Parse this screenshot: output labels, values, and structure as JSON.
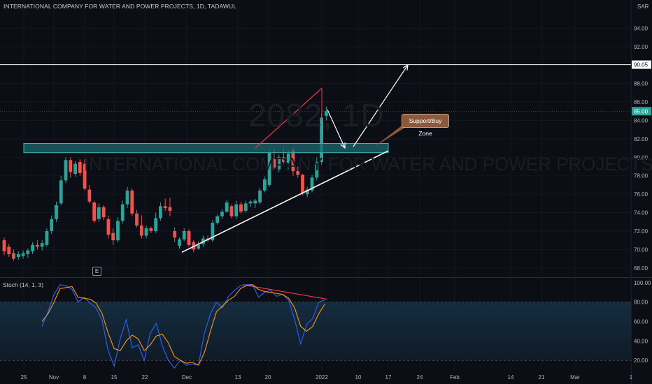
{
  "header": {
    "title": "INTERNATIONAL COMPANY FOR WATER AND POWER PROJECTS, 1D, TADAWUL",
    "currency": "SAR"
  },
  "watermark": {
    "symbol": "2082, 1D",
    "name": "INTERNATIONAL COMPANY FOR WATER AND POWER PROJECTS"
  },
  "annotation": {
    "text": "Support/Buy Zone"
  },
  "earnings_badge": "E",
  "indicator": {
    "label": "Stoch (14, 1, 3)"
  },
  "colors": {
    "background": "#0c0e15",
    "up": "#26a69a",
    "down": "#ef5350",
    "zone_fill": "#1a6a6e",
    "zone_border": "#3fb5b8",
    "k_line": "#2962ff",
    "d_line": "#ff9800",
    "divergence": "#f23645",
    "trendline": "#ffffff",
    "last_price_bg": "#26a69a"
  },
  "chart_data": [
    {
      "type": "candlestick",
      "title": "INTERNATIONAL COMPANY FOR WATER AND POWER PROJECTS, 1D, TADAWUL",
      "y_unit": "SAR",
      "ylim": [
        67,
        96
      ],
      "y_ticks": [
        68,
        70,
        72,
        74,
        76,
        78,
        80,
        82,
        84,
        86,
        88,
        92,
        94
      ],
      "y_tick_labels": [
        "68.00",
        "70.00",
        "72.00",
        "74.00",
        "76.00",
        "78.00",
        "80.00",
        "82.00",
        "84.00",
        "86.00",
        "88.00",
        "92.00",
        "94.00"
      ],
      "x_tick_labels": [
        "25",
        "Nov",
        "8",
        "15",
        "22",
        "Dec",
        "13",
        "20",
        "2022",
        "10",
        "17",
        "24",
        "Feb",
        "14",
        "21",
        "Mar",
        "1"
      ],
      "candles": [
        {
          "o": 71.0,
          "h": 71.3,
          "l": 69.4,
          "c": 69.8
        },
        {
          "o": 70.3,
          "h": 70.6,
          "l": 69.2,
          "c": 69.5
        },
        {
          "o": 69.6,
          "h": 70.0,
          "l": 68.8,
          "c": 69.0
        },
        {
          "o": 69.2,
          "h": 69.8,
          "l": 68.9,
          "c": 69.5
        },
        {
          "o": 69.3,
          "h": 69.9,
          "l": 69.0,
          "c": 69.6
        },
        {
          "o": 69.5,
          "h": 70.1,
          "l": 69.1,
          "c": 69.9
        },
        {
          "o": 69.8,
          "h": 70.8,
          "l": 69.5,
          "c": 70.5
        },
        {
          "o": 70.5,
          "h": 71.0,
          "l": 70.0,
          "c": 70.3
        },
        {
          "o": 70.3,
          "h": 71.0,
          "l": 69.9,
          "c": 70.7
        },
        {
          "o": 70.5,
          "h": 72.3,
          "l": 70.3,
          "c": 72.0
        },
        {
          "o": 72.0,
          "h": 73.7,
          "l": 71.7,
          "c": 73.3
        },
        {
          "o": 73.3,
          "h": 75.2,
          "l": 73.0,
          "c": 74.8
        },
        {
          "o": 75.0,
          "h": 78.0,
          "l": 74.8,
          "c": 77.5
        },
        {
          "o": 77.5,
          "h": 80.0,
          "l": 77.2,
          "c": 79.7
        },
        {
          "o": 79.7,
          "h": 80.0,
          "l": 77.8,
          "c": 78.4
        },
        {
          "o": 78.2,
          "h": 79.6,
          "l": 77.9,
          "c": 79.3
        },
        {
          "o": 79.5,
          "h": 79.8,
          "l": 78.0,
          "c": 78.3
        },
        {
          "o": 79.3,
          "h": 79.8,
          "l": 76.4,
          "c": 76.6
        },
        {
          "o": 76.5,
          "h": 77.0,
          "l": 75.0,
          "c": 75.2
        },
        {
          "o": 75.1,
          "h": 75.3,
          "l": 72.9,
          "c": 73.1
        },
        {
          "o": 73.3,
          "h": 75.0,
          "l": 73.0,
          "c": 74.6
        },
        {
          "o": 74.6,
          "h": 74.8,
          "l": 73.2,
          "c": 73.5
        },
        {
          "o": 73.3,
          "h": 73.7,
          "l": 71.2,
          "c": 71.6
        },
        {
          "o": 71.8,
          "h": 72.3,
          "l": 70.5,
          "c": 71.0
        },
        {
          "o": 71.0,
          "h": 73.5,
          "l": 70.8,
          "c": 73.1
        },
        {
          "o": 73.1,
          "h": 75.3,
          "l": 72.8,
          "c": 74.9
        },
        {
          "o": 74.9,
          "h": 76.8,
          "l": 74.5,
          "c": 76.4
        },
        {
          "o": 76.4,
          "h": 76.6,
          "l": 73.6,
          "c": 73.9
        },
        {
          "o": 73.9,
          "h": 74.3,
          "l": 72.4,
          "c": 72.6
        },
        {
          "o": 72.6,
          "h": 73.7,
          "l": 71.2,
          "c": 71.5
        },
        {
          "o": 71.5,
          "h": 72.6,
          "l": 71.2,
          "c": 72.3
        },
        {
          "o": 72.3,
          "h": 72.5,
          "l": 71.8,
          "c": 72.0
        },
        {
          "o": 72.0,
          "h": 74.0,
          "l": 71.8,
          "c": 73.4
        },
        {
          "o": 73.4,
          "h": 75.1,
          "l": 73.1,
          "c": 74.7
        },
        {
          "o": 74.7,
          "h": 75.5,
          "l": 74.2,
          "c": 74.5
        },
        {
          "o": 74.6,
          "h": 75.6,
          "l": 73.6,
          "c": 74.2
        },
        {
          "o": 72.0,
          "h": 72.4,
          "l": 70.8,
          "c": 71.3
        },
        {
          "o": 70.4,
          "h": 71.3,
          "l": 70.1,
          "c": 71.1
        },
        {
          "o": 71.1,
          "h": 72.3,
          "l": 70.9,
          "c": 72.0
        },
        {
          "o": 72.0,
          "h": 72.2,
          "l": 70.3,
          "c": 70.5
        },
        {
          "o": 70.8,
          "h": 71.0,
          "l": 69.7,
          "c": 70.0
        },
        {
          "o": 70.1,
          "h": 70.9,
          "l": 70.0,
          "c": 70.5
        },
        {
          "o": 70.6,
          "h": 71.5,
          "l": 70.3,
          "c": 71.2
        },
        {
          "o": 71.2,
          "h": 71.5,
          "l": 70.8,
          "c": 71.0
        },
        {
          "o": 71.0,
          "h": 73.2,
          "l": 70.8,
          "c": 72.9
        },
        {
          "o": 72.9,
          "h": 73.8,
          "l": 72.7,
          "c": 73.6
        },
        {
          "o": 73.6,
          "h": 74.4,
          "l": 73.3,
          "c": 74.1
        },
        {
          "o": 74.1,
          "h": 75.4,
          "l": 74.0,
          "c": 75.1
        },
        {
          "o": 74.7,
          "h": 74.9,
          "l": 73.4,
          "c": 73.6
        },
        {
          "o": 73.6,
          "h": 75.3,
          "l": 73.3,
          "c": 74.9
        },
        {
          "o": 74.9,
          "h": 75.2,
          "l": 73.9,
          "c": 74.1
        },
        {
          "o": 74.2,
          "h": 75.3,
          "l": 74.0,
          "c": 75.0
        },
        {
          "o": 75.0,
          "h": 75.4,
          "l": 74.6,
          "c": 75.2
        },
        {
          "o": 75.0,
          "h": 75.5,
          "l": 74.5,
          "c": 75.3
        },
        {
          "o": 75.1,
          "h": 76.7,
          "l": 74.9,
          "c": 76.4
        },
        {
          "o": 76.4,
          "h": 77.9,
          "l": 76.2,
          "c": 77.6
        },
        {
          "o": 77.0,
          "h": 80.8,
          "l": 76.8,
          "c": 80.5
        },
        {
          "o": 79.8,
          "h": 81.0,
          "l": 78.7,
          "c": 78.9
        },
        {
          "o": 78.7,
          "h": 80.3,
          "l": 78.4,
          "c": 80.0
        },
        {
          "o": 80.0,
          "h": 81.0,
          "l": 79.2,
          "c": 79.5
        },
        {
          "o": 79.4,
          "h": 80.8,
          "l": 78.7,
          "c": 80.4
        },
        {
          "o": 80.8,
          "h": 81.1,
          "l": 78.0,
          "c": 78.5
        },
        {
          "o": 78.5,
          "h": 79.0,
          "l": 77.8,
          "c": 78.1
        },
        {
          "o": 78.1,
          "h": 78.2,
          "l": 75.9,
          "c": 76.1
        },
        {
          "o": 76.0,
          "h": 76.8,
          "l": 75.7,
          "c": 76.5
        },
        {
          "o": 76.4,
          "h": 78.1,
          "l": 76.2,
          "c": 77.8
        },
        {
          "o": 77.8,
          "h": 80.0,
          "l": 77.5,
          "c": 79.5
        },
        {
          "o": 79.5,
          "h": 84.8,
          "l": 79.2,
          "c": 84.3
        },
        {
          "o": 84.5,
          "h": 85.5,
          "l": 84.0,
          "c": 85.0
        }
      ],
      "horizontal_level": {
        "value": 90.05,
        "label": "90.05"
      },
      "last_price": {
        "value": 85.0,
        "label": "85.00"
      },
      "support_zone": {
        "from": 80.5,
        "to": 81.5,
        "label": "Support/Buy Zone"
      }
    },
    {
      "type": "line",
      "title": "Stoch (14, 1, 3)",
      "ylim": [
        10,
        105
      ],
      "y_ticks": [
        20,
        40,
        60,
        80,
        100
      ],
      "y_tick_labels": [
        "20.00",
        "40.00",
        "60.00",
        "80.00",
        "100.00"
      ],
      "bands": [
        20,
        80
      ],
      "series": [
        {
          "name": "%K",
          "color": "#2962ff",
          "values": [
            55,
            70,
            88,
            98,
            97,
            93,
            80,
            85,
            79,
            74,
            61,
            30,
            14,
            42,
            62,
            33,
            36,
            20,
            48,
            58,
            35,
            20,
            12,
            20,
            15,
            16,
            15,
            48,
            68,
            80,
            74,
            86,
            92,
            97,
            98,
            98,
            85,
            90,
            92,
            86,
            88,
            82,
            62,
            37,
            57,
            63,
            80,
            82
          ]
        },
        {
          "name": "%D",
          "color": "#ff9800",
          "values": [
            60,
            68,
            80,
            94,
            95,
            96,
            85,
            84,
            83,
            79,
            68,
            48,
            32,
            30,
            40,
            46,
            42,
            30,
            36,
            45,
            47,
            38,
            24,
            20,
            17,
            18,
            15,
            28,
            50,
            70,
            76,
            82,
            86,
            94,
            97,
            98,
            93,
            91,
            90,
            89,
            88,
            84,
            74,
            55,
            50,
            55,
            68,
            78
          ]
        }
      ]
    }
  ]
}
